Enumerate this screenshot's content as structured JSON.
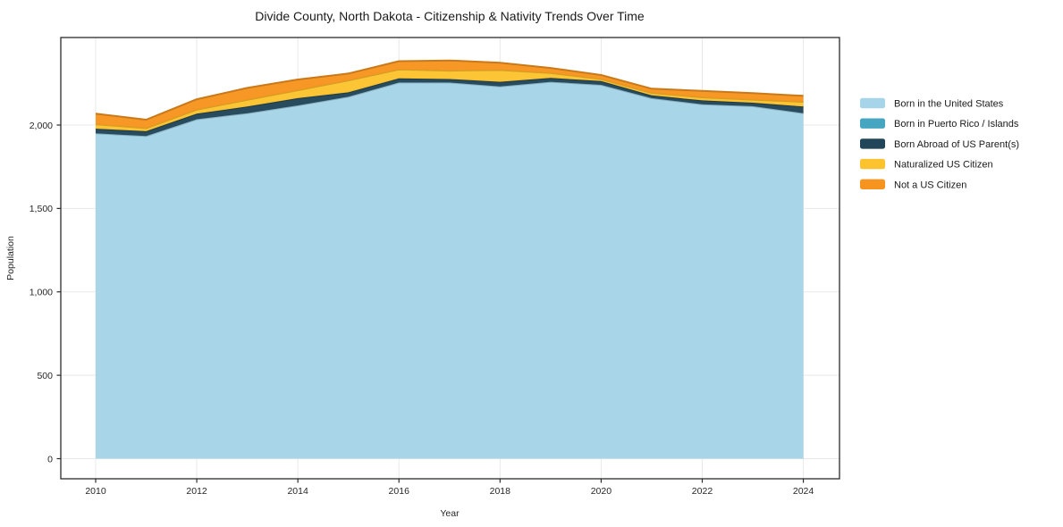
{
  "title": "Divide County, North Dakota - Citizenship & Nativity Trends Over Time",
  "chart_data": {
    "type": "area",
    "stacked": true,
    "title": "Divide County, North Dakota - Citizenship & Nativity Trends Over Time",
    "xlabel": "Year",
    "ylabel": "Population",
    "x": [
      2010,
      2011,
      2012,
      2013,
      2014,
      2015,
      2016,
      2017,
      2018,
      2019,
      2020,
      2021,
      2022,
      2023,
      2024
    ],
    "series": [
      {
        "name": "Born in the United States",
        "color": "#A6D4E8",
        "values": [
          1950,
          1934,
          2035,
          2071,
          2118,
          2170,
          2255,
          2255,
          2232,
          2259,
          2241,
          2161,
          2125,
          2113,
          2071
        ]
      },
      {
        "name": "Born in Puerto Rico / Islands",
        "color": "#46A6C2",
        "values": [
          0,
          0,
          0,
          0,
          0,
          0,
          0,
          0,
          0,
          0,
          0,
          0,
          0,
          0,
          0
        ]
      },
      {
        "name": "Born Abroad of US Parent(s)",
        "color": "#214659",
        "values": [
          28,
          29,
          33,
          40,
          43,
          26,
          25,
          21,
          27,
          23,
          23,
          17,
          23,
          21,
          40
        ]
      },
      {
        "name": "Naturalized US Citizen",
        "color": "#FCC32E",
        "values": [
          27,
          18,
          24,
          40,
          48,
          72,
          53,
          50,
          71,
          30,
          12,
          15,
          18,
          18,
          28
        ]
      },
      {
        "name": "Not a US Citizen",
        "color": "#F6941F",
        "values": [
          63,
          51,
          63,
          72,
          64,
          41,
          50,
          61,
          44,
          30,
          24,
          25,
          39,
          39,
          36
        ]
      }
    ],
    "totals": [
      2068,
      2032,
      2155,
      2223,
      2273,
      2309,
      2383,
      2387,
      2374,
      2342,
      2300,
      2218,
      2205,
      2191,
      2175
    ],
    "xticks": {
      "values": [
        2010,
        2012,
        2014,
        2016,
        2018,
        2020,
        2022,
        2024
      ],
      "labels": [
        "2010",
        "2012",
        "2014",
        "2016",
        "2018",
        "2020",
        "2022",
        "2024"
      ]
    },
    "yticks": {
      "values": [
        0,
        500,
        1000,
        1500,
        2000
      ],
      "labels": [
        "0",
        "500",
        "1,000",
        "1,500",
        "2,000"
      ]
    },
    "xlim": [
      2009.31,
      2024.72
    ],
    "ylim": [
      -120,
      2524
    ],
    "grid": true,
    "grid_color": "#e8e8e8",
    "spine_color": "#2b2b2b",
    "background": "#ffffff",
    "legend_position": "right-outside"
  }
}
